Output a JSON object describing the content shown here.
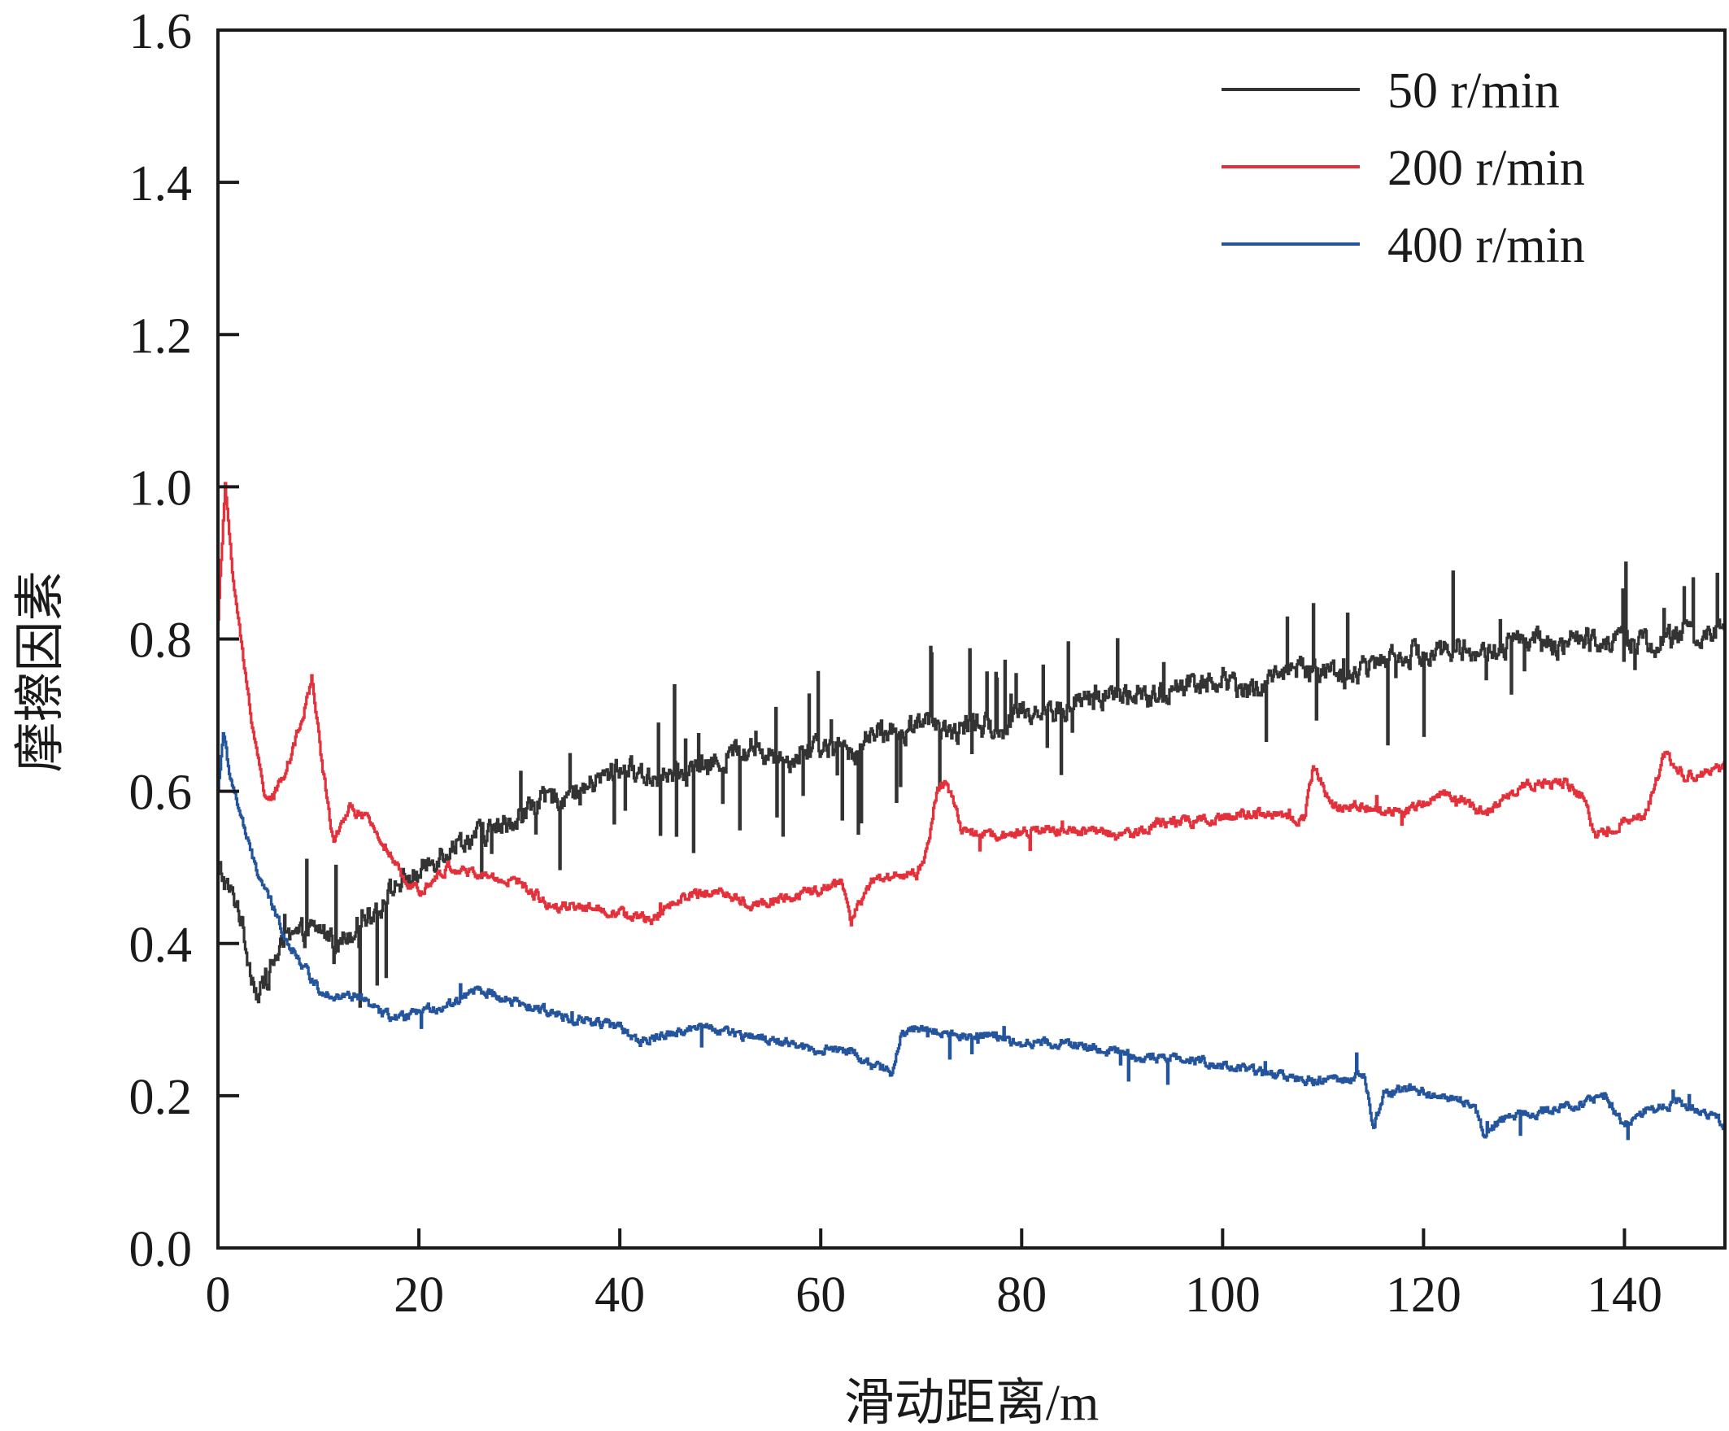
{
  "chart_data": {
    "type": "line",
    "title": "",
    "xlabel": "滑动距离/m",
    "ylabel": "摩擦因素",
    "xlim": [
      0,
      150
    ],
    "ylim": [
      0.0,
      1.6
    ],
    "x_ticks": [
      "0",
      "20",
      "40",
      "60",
      "80",
      "100",
      "120",
      "140"
    ],
    "y_ticks": [
      "0.0",
      "0.2",
      "0.4",
      "0.6",
      "0.8",
      "1.0",
      "1.2",
      "1.4",
      "1.6"
    ],
    "legend_position": "top-right",
    "series": [
      {
        "name": "50 r/min",
        "color": "#333333",
        "x": [
          0,
          1,
          2,
          3,
          4,
          5,
          6,
          8,
          10,
          12,
          14,
          16,
          18,
          20,
          22,
          25,
          28,
          30,
          33,
          36,
          40,
          43,
          46,
          50,
          53,
          56,
          60,
          63,
          66,
          68,
          70,
          72,
          75,
          78,
          80,
          83,
          86,
          90,
          93,
          96,
          100,
          103,
          106,
          110,
          113,
          116,
          120,
          123,
          126,
          130,
          133,
          136,
          140,
          143,
          146,
          148,
          150
        ],
        "values": [
          0.5,
          0.47,
          0.45,
          0.38,
          0.33,
          0.36,
          0.39,
          0.41,
          0.42,
          0.4,
          0.43,
          0.45,
          0.48,
          0.49,
          0.52,
          0.54,
          0.55,
          0.57,
          0.59,
          0.6,
          0.63,
          0.62,
          0.62,
          0.64,
          0.66,
          0.64,
          0.66,
          0.65,
          0.68,
          0.67,
          0.7,
          0.67,
          0.69,
          0.68,
          0.71,
          0.7,
          0.72,
          0.73,
          0.72,
          0.74,
          0.75,
          0.73,
          0.76,
          0.76,
          0.75,
          0.78,
          0.78,
          0.79,
          0.78,
          0.8,
          0.79,
          0.8,
          0.8,
          0.79,
          0.81,
          0.8,
          0.82
        ]
      },
      {
        "name": "200 r/min",
        "color": "#e3313c",
        "x": [
          0,
          0.7,
          1.5,
          2.5,
          3.5,
          4.5,
          5.5,
          7,
          8.5,
          9.3,
          10.5,
          11.5,
          13,
          15,
          17,
          18.5,
          20,
          23,
          26,
          30,
          33,
          36,
          40,
          43,
          46,
          50,
          53,
          56,
          60,
          62,
          63,
          65,
          67,
          68,
          69.5,
          70.5,
          71.5,
          72.5,
          74,
          78,
          82,
          86,
          90,
          94,
          98,
          102,
          106,
          108,
          109,
          111,
          114,
          118,
          122,
          126,
          130,
          134,
          136,
          137,
          140,
          142,
          144,
          146,
          150
        ],
        "values": [
          0.83,
          1.0,
          0.88,
          0.77,
          0.68,
          0.6,
          0.59,
          0.64,
          0.7,
          0.75,
          0.62,
          0.53,
          0.58,
          0.56,
          0.52,
          0.48,
          0.47,
          0.5,
          0.49,
          0.48,
          0.45,
          0.45,
          0.44,
          0.43,
          0.46,
          0.47,
          0.45,
          0.46,
          0.47,
          0.48,
          0.43,
          0.48,
          0.49,
          0.49,
          0.49,
          0.52,
          0.6,
          0.61,
          0.55,
          0.54,
          0.55,
          0.55,
          0.54,
          0.56,
          0.56,
          0.57,
          0.57,
          0.56,
          0.63,
          0.58,
          0.58,
          0.57,
          0.6,
          0.57,
          0.61,
          0.61,
          0.59,
          0.54,
          0.56,
          0.57,
          0.65,
          0.62,
          0.63
        ]
      },
      {
        "name": "400 r/min",
        "color": "#23549c",
        "x": [
          0,
          0.5,
          1,
          2,
          3,
          4,
          5,
          6,
          7,
          8,
          9,
          10,
          12,
          14,
          16,
          18,
          20,
          23,
          26,
          30,
          33,
          36,
          40,
          42,
          44,
          48,
          52,
          56,
          60,
          63,
          65,
          67,
          68,
          70,
          73,
          76,
          80,
          84,
          88,
          92,
          96,
          100,
          104,
          108,
          112,
          114,
          115,
          116,
          118,
          122,
          125,
          126,
          128,
          132,
          136,
          138,
          140,
          142,
          145,
          148,
          150
        ],
        "values": [
          0.6,
          0.68,
          0.63,
          0.58,
          0.53,
          0.49,
          0.46,
          0.43,
          0.4,
          0.38,
          0.36,
          0.34,
          0.33,
          0.33,
          0.31,
          0.3,
          0.31,
          0.32,
          0.34,
          0.32,
          0.31,
          0.3,
          0.29,
          0.27,
          0.28,
          0.29,
          0.28,
          0.27,
          0.26,
          0.26,
          0.24,
          0.23,
          0.28,
          0.29,
          0.28,
          0.28,
          0.27,
          0.27,
          0.26,
          0.25,
          0.25,
          0.24,
          0.23,
          0.22,
          0.22,
          0.23,
          0.16,
          0.2,
          0.21,
          0.2,
          0.19,
          0.15,
          0.17,
          0.18,
          0.19,
          0.2,
          0.16,
          0.18,
          0.19,
          0.18,
          0.16
        ]
      }
    ]
  }
}
